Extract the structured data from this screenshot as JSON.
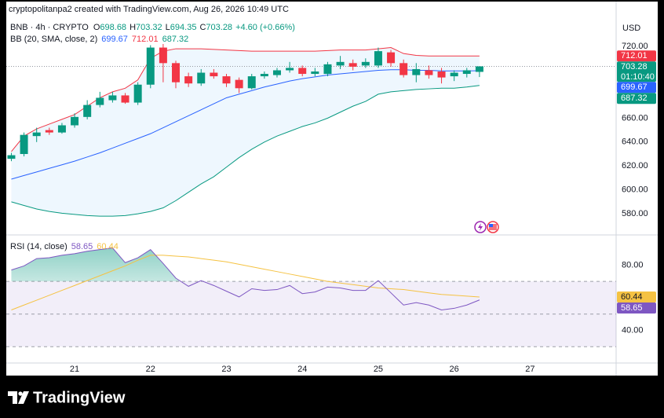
{
  "credit": "cryptopolitanpa2 created with TradingView.com, Aug 26, 2026 10:49 UTC",
  "brand": "TradingView",
  "chart_data": [
    {
      "type": "candlestick",
      "title": "BNB · 4h · CRYPTO",
      "ohlc_labels": [
        "O",
        "H",
        "L",
        "C"
      ],
      "change": "+4.60 (+0.66%)",
      "indicator": "BB (20, SMA, close, 2)",
      "currency": "USD",
      "countdown": "01:10:40",
      "up_color": "#089981",
      "down_color": "#f23645",
      "band_fill": "#2196f3",
      "x": [
        0,
        1,
        2,
        3,
        4,
        5,
        6,
        7,
        8,
        9,
        10,
        11,
        12,
        13,
        14,
        15,
        16,
        17,
        18,
        19,
        20,
        21,
        22,
        23,
        24,
        25,
        26,
        27,
        28,
        29,
        30,
        31,
        32,
        33,
        34,
        35,
        36,
        37
      ],
      "xlim": [
        -0.4,
        47.8
      ],
      "xticks": [
        {
          "value": 5,
          "label": "21"
        },
        {
          "value": 11,
          "label": "22"
        },
        {
          "value": 17,
          "label": "23"
        },
        {
          "value": 23,
          "label": "24"
        },
        {
          "value": 29,
          "label": "25"
        },
        {
          "value": 35,
          "label": "26"
        },
        {
          "value": 41,
          "label": "27"
        }
      ],
      "ylim": [
        563,
        732.5
      ],
      "yticks": [
        {
          "value": 720,
          "label": "720.00"
        },
        {
          "value": 660,
          "label": "660.00"
        },
        {
          "value": 640,
          "label": "640.00"
        },
        {
          "value": 620,
          "label": "620.00"
        },
        {
          "value": 600,
          "label": "600.00"
        },
        {
          "value": 580,
          "label": "580.00"
        }
      ],
      "open": [
        626,
        630,
        645,
        650,
        648,
        654,
        661,
        671,
        675,
        679,
        673,
        688,
        719,
        706,
        695,
        689,
        698,
        695,
        692,
        685,
        695,
        696,
        700,
        702,
        697,
        697,
        704,
        706,
        704,
        704,
        715,
        706,
        696,
        700,
        699,
        695,
        697,
        698.68
      ],
      "high": [
        631,
        648,
        652,
        652,
        656,
        664,
        675,
        682,
        682,
        681,
        690,
        721,
        722,
        708,
        698,
        701,
        701,
        697,
        694,
        697,
        699,
        702,
        707,
        704,
        702,
        707,
        712,
        709,
        710,
        719,
        717,
        709,
        706,
        704,
        702,
        700,
        702,
        703.32
      ],
      "low": [
        624,
        628,
        640,
        646,
        647,
        652,
        659,
        669,
        673,
        672,
        671,
        685,
        690,
        685,
        686,
        687,
        693,
        686,
        681,
        684,
        693,
        694,
        698,
        695,
        695,
        695,
        701,
        700,
        702,
        702,
        703,
        694,
        690,
        693,
        689,
        691,
        694,
        694.35
      ],
      "close": [
        629,
        646,
        648,
        648,
        654,
        661,
        671,
        677,
        679,
        673,
        688,
        719,
        706,
        690,
        689,
        698,
        695,
        689,
        685,
        695,
        697,
        700,
        702,
        697,
        699,
        705,
        707,
        703,
        707,
        716,
        706,
        696,
        701,
        696,
        694,
        698,
        700,
        703.28
      ],
      "series": [
        {
          "color": "#2962ff",
          "values": [
            609,
            612,
            615,
            618,
            621,
            624,
            627.5,
            631,
            635,
            639,
            643,
            647,
            652,
            657,
            662,
            667,
            672,
            677,
            680,
            683,
            686,
            688.5,
            691,
            693,
            694.5,
            696,
            697,
            698,
            699,
            700,
            700.5,
            700.5,
            700,
            700,
            699.5,
            699.5,
            699.5,
            699.67
          ]
        },
        {
          "color": "#f23645",
          "values": [
            632,
            645,
            651,
            655,
            659,
            663,
            670,
            677,
            682,
            685,
            692,
            710,
            716,
            718,
            718,
            718,
            717.5,
            717,
            716.5,
            716,
            716,
            716,
            716,
            716,
            716,
            716.5,
            717,
            717,
            717,
            718,
            719,
            714,
            712.5,
            712,
            712,
            712,
            712,
            712.01
          ]
        },
        {
          "color": "#089981",
          "values": [
            590,
            587,
            584,
            582,
            580.5,
            579.5,
            578.5,
            578,
            578,
            578.5,
            580,
            582,
            585,
            591,
            598,
            605,
            611,
            619,
            627,
            634,
            640,
            645,
            649,
            653,
            656,
            660,
            665,
            670,
            674,
            680,
            682,
            683,
            684,
            684.5,
            685,
            685,
            686,
            687.32
          ]
        }
      ]
    },
    {
      "type": "line",
      "title": "RSI (14, close)",
      "x": [
        0,
        1,
        2,
        3,
        4,
        5,
        6,
        7,
        8,
        9,
        10,
        11,
        12,
        13,
        14,
        15,
        16,
        17,
        18,
        19,
        20,
        21,
        22,
        23,
        24,
        25,
        26,
        27,
        28,
        29,
        30,
        31,
        32,
        33,
        34,
        35,
        36,
        37
      ],
      "ylim": [
        20,
        98
      ],
      "yticks": [
        {
          "value": 80,
          "label": "80.00"
        },
        {
          "value": 40,
          "label": "40.00"
        }
      ],
      "levels": [
        70,
        50,
        30
      ],
      "level_color": "#7e57c2",
      "overbought_color": "#089981",
      "series": [
        {
          "color": "#7e57c2",
          "values": [
            77,
            79.5,
            84,
            84.5,
            86,
            87,
            88.5,
            89.5,
            90.5,
            81.5,
            84.5,
            89.5,
            81,
            72,
            67,
            70.5,
            67.5,
            64,
            60.5,
            65.5,
            64.5,
            65,
            67.5,
            62.5,
            63.5,
            66.5,
            66,
            64.5,
            64.5,
            70.5,
            63,
            55.5,
            57,
            55.5,
            52.5,
            53.5,
            55.5,
            58.65
          ]
        },
        {
          "color": "#f5c242",
          "values": [
            52.5,
            55.5,
            58.5,
            61.5,
            64.5,
            67.5,
            70.5,
            73.5,
            76.5,
            79.5,
            83,
            86,
            86,
            85.5,
            85,
            84,
            83,
            82,
            80.5,
            79,
            77.5,
            76,
            74.5,
            73,
            71.5,
            70,
            69,
            68,
            67,
            66,
            65.5,
            65,
            64,
            63,
            62,
            61.5,
            61,
            60.44
          ]
        }
      ]
    }
  ]
}
